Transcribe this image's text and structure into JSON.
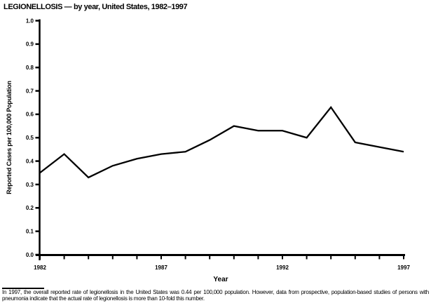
{
  "chart_data": {
    "type": "line",
    "title": "LEGIONELLOSIS — by year, United States, 1982–1997",
    "x": [
      1982,
      1983,
      1984,
      1985,
      1986,
      1987,
      1988,
      1989,
      1990,
      1991,
      1992,
      1993,
      1994,
      1995,
      1996,
      1997
    ],
    "values": [
      0.35,
      0.43,
      0.33,
      0.38,
      0.41,
      0.43,
      0.44,
      0.49,
      0.55,
      0.53,
      0.53,
      0.5,
      0.63,
      0.48,
      0.46,
      0.44
    ],
    "xlabel": "Year",
    "ylabel": "Reported Cases per 100,000 Population",
    "ylim": [
      0.0,
      1.0
    ],
    "ytick_step": 0.1,
    "xtick_labels": [
      "1982",
      "1987",
      "1992",
      "1997"
    ],
    "grid": false,
    "legend": "none",
    "line_color": "#000000",
    "axis_color": "#000000",
    "background_color": "#ffffff",
    "footnote": "In 1997, the overall reported rate of legionellosis in the United States was 0.44 per 100,000 population. However, data from prospective, population-based studies of persons with pneumonia indicate that the actual rate of legionellosis is more than 10-fold this number."
  }
}
